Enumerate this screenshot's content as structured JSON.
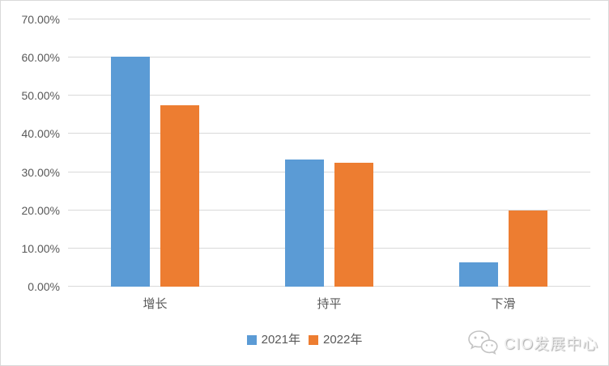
{
  "chart_data": {
    "type": "bar",
    "title": "",
    "categories": [
      "增长",
      "持平",
      "下滑"
    ],
    "series": [
      {
        "name": "2021年",
        "color": "#5B9BD5",
        "values": [
          60.3,
          33.3,
          6.4
        ]
      },
      {
        "name": "2022年",
        "color": "#ED7D31",
        "values": [
          47.5,
          32.5,
          20.0
        ]
      }
    ],
    "ylim": [
      0,
      70
    ],
    "ytick_step": 10,
    "ytick_labels": [
      "0.00%",
      "10.00%",
      "20.00%",
      "30.00%",
      "40.00%",
      "50.00%",
      "60.00%",
      "70.00%"
    ],
    "grid": true,
    "legend_position": "bottom"
  },
  "colors": {
    "gridline": "#d9d9d9",
    "axis_text": "#595959",
    "frame_border": "#d9d9d9",
    "series_2021": "#5B9BD5",
    "series_2022": "#ED7D31"
  },
  "legend": {
    "items": [
      {
        "label": "2021年",
        "color": "#5B9BD5"
      },
      {
        "label": "2022年",
        "color": "#ED7D31"
      }
    ]
  },
  "watermark": {
    "icon": "wechat-icon",
    "text": "CIO发展中心"
  }
}
